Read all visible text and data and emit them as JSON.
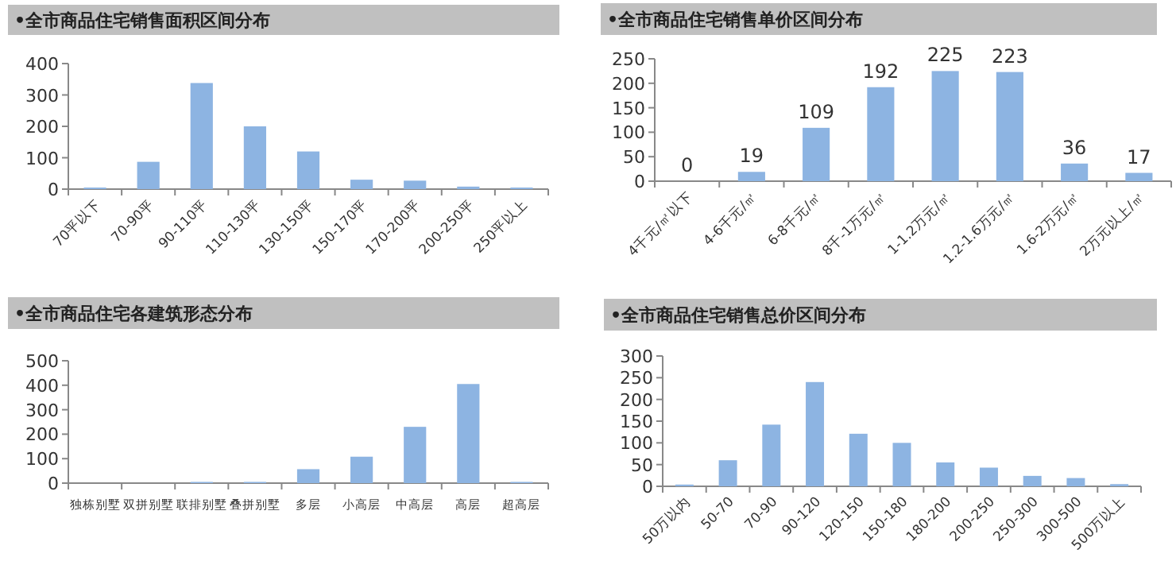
{
  "chart_data": [
    {
      "type": "bar",
      "title": "•全市商品住宅销售面积区间分布",
      "categories": [
        "70平以下",
        "70-90平",
        "90-110平",
        "110-130平",
        "130-150平",
        "150-170平",
        "170-200平",
        "200-250平",
        "250平以上"
      ],
      "values": [
        5,
        87,
        338,
        200,
        120,
        30,
        27,
        8,
        5
      ],
      "color": "#8db4e2",
      "ylim": [
        0,
        400
      ],
      "yticks": [
        0,
        100,
        200,
        300,
        400
      ]
    },
    {
      "type": "bar",
      "title": "•全市商品住宅销售单价区间分布",
      "categories": [
        "4千元/㎡以下",
        "4-6千元/㎡",
        "6-8千元/㎡",
        "8千-1万元/㎡",
        "1-1.2万元/㎡",
        "1.2-1.6万元/㎡",
        "1.6-2万元/㎡",
        "2万元以上/㎡"
      ],
      "values": [
        0,
        19,
        109,
        192,
        225,
        223,
        36,
        17
      ],
      "color": "#8db4e2",
      "ylim": [
        0,
        250
      ],
      "yticks": [
        0,
        50,
        100,
        150,
        200,
        250
      ],
      "data_labels": true
    },
    {
      "type": "bar",
      "title": "•全市商品住宅各建筑形态分布",
      "categories": [
        "独栋别墅",
        "双拼别墅",
        "联排别墅",
        "叠拼别墅",
        "多层",
        "小高层",
        "中高层",
        "高层",
        "超高层"
      ],
      "values": [
        0,
        0,
        5,
        5,
        57,
        108,
        230,
        405,
        5
      ],
      "color": "#8db4e2",
      "ylim": [
        0,
        500
      ],
      "yticks": [
        0,
        100,
        200,
        300,
        400,
        500
      ]
    },
    {
      "type": "bar",
      "title": "•全市商品住宅销售总价区间分布",
      "categories": [
        "50万以内",
        "50-70",
        "70-90",
        "90-120",
        "120-150",
        "150-180",
        "180-200",
        "200-250",
        "250-300",
        "300-500",
        "500万以上"
      ],
      "values": [
        4,
        60,
        142,
        240,
        121,
        100,
        55,
        43,
        24,
        19,
        5
      ],
      "color": "#8db4e2",
      "ylim": [
        0,
        300
      ],
      "yticks": [
        0,
        50,
        100,
        150,
        200,
        250,
        300
      ]
    }
  ]
}
